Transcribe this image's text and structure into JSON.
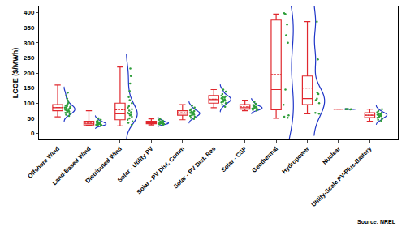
{
  "chart_data": {
    "type": "box",
    "y_label": "LCOE ($/MWh)",
    "annotation": "Source: NREL",
    "categories": [
      "Offshore Wind",
      "Land-Based Wind",
      "Distributed Wind",
      "Solar - Utility PV",
      "Solar - PV Dist. Comm",
      "Solar - PV Dist. Res",
      "Solar - CSP",
      "Geothermal",
      "Hydropower",
      "Nuclear",
      "Utility-Scale PV-Plus-Battery"
    ],
    "boxes": {
      "color": "#e0282e",
      "min": [
        55,
        25,
        25,
        28,
        45,
        85,
        75,
        50,
        65,
        80,
        40
      ],
      "q1": [
        75,
        28,
        45,
        32,
        60,
        100,
        80,
        78,
        95,
        80,
        52
      ],
      "median": [
        85,
        33,
        65,
        35,
        67,
        112,
        85,
        145,
        115,
        80,
        60
      ],
      "q3": [
        95,
        40,
        100,
        40,
        75,
        125,
        95,
        375,
        190,
        80,
        68
      ],
      "max": [
        160,
        75,
        220,
        48,
        95,
        145,
        110,
        395,
        370,
        80,
        80
      ],
      "mean": [
        86,
        34,
        78,
        36,
        68,
        113,
        88,
        195,
        150,
        80,
        60
      ]
    },
    "points": {
      "color": "#2e9e3a",
      "values": [
        [
          58,
          62,
          65,
          68,
          70,
          72,
          74,
          75,
          76,
          78,
          80,
          82,
          83,
          85,
          86,
          88,
          90,
          92,
          95,
          98,
          102,
          108,
          115,
          125,
          135
        ],
        [
          25,
          26,
          27,
          28,
          29,
          30,
          31,
          32,
          33,
          34,
          35,
          36,
          38,
          40,
          42,
          45,
          50
        ],
        [
          28,
          35,
          40,
          45,
          50,
          55,
          60,
          62,
          65,
          68,
          70,
          75,
          80,
          85,
          90,
          100,
          110,
          120,
          140,
          165,
          190,
          215
        ],
        [
          28,
          30,
          31,
          32,
          33,
          34,
          35,
          35,
          36,
          37,
          38,
          40,
          42,
          45,
          48
        ],
        [
          48,
          52,
          55,
          58,
          60,
          62,
          64,
          65,
          67,
          68,
          70,
          72,
          74,
          76,
          80,
          85,
          92
        ],
        [
          88,
          95,
          100,
          103,
          105,
          108,
          110,
          112,
          114,
          116,
          118,
          120,
          122,
          125,
          130,
          138,
          145
        ],
        [
          76,
          78,
          80,
          82,
          84,
          85,
          86,
          88,
          90,
          94,
          98,
          105
        ],
        [
          52,
          55,
          60,
          95,
          145,
          300,
          325,
          360,
          395,
          398
        ],
        [
          65,
          68,
          100,
          110,
          115,
          130,
          135,
          245,
          370
        ],
        [
          79,
          80,
          80,
          81,
          80
        ],
        [
          42,
          45,
          48,
          52,
          55,
          57,
          58,
          60,
          61,
          62,
          64,
          66,
          68,
          70,
          74,
          80
        ]
      ]
    },
    "density": {
      "color": "#1f35c8"
    },
    "ylim": [
      -20,
      420
    ],
    "yticks": [
      0,
      50,
      100,
      150,
      200,
      250,
      300,
      350,
      400
    ],
    "grid": false
  }
}
